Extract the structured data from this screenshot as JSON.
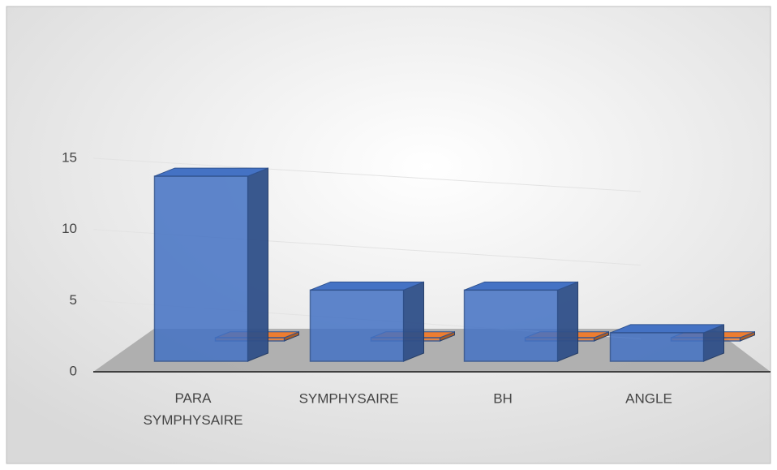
{
  "chart_data": {
    "type": "bar3d",
    "categories": [
      "PARA SYMPHYSAIRE",
      "SYMPHYSAIRE",
      "BH",
      "ANGLE"
    ],
    "series": [
      {
        "color": "#4472c4",
        "values": [
          13,
          5,
          5,
          2
        ]
      },
      {
        "color": "#ed7d31",
        "values": [
          0,
          0,
          0,
          0
        ]
      }
    ],
    "ylim": [
      0,
      15
    ],
    "yticks": [
      0,
      5,
      10,
      15
    ],
    "grid": true
  }
}
